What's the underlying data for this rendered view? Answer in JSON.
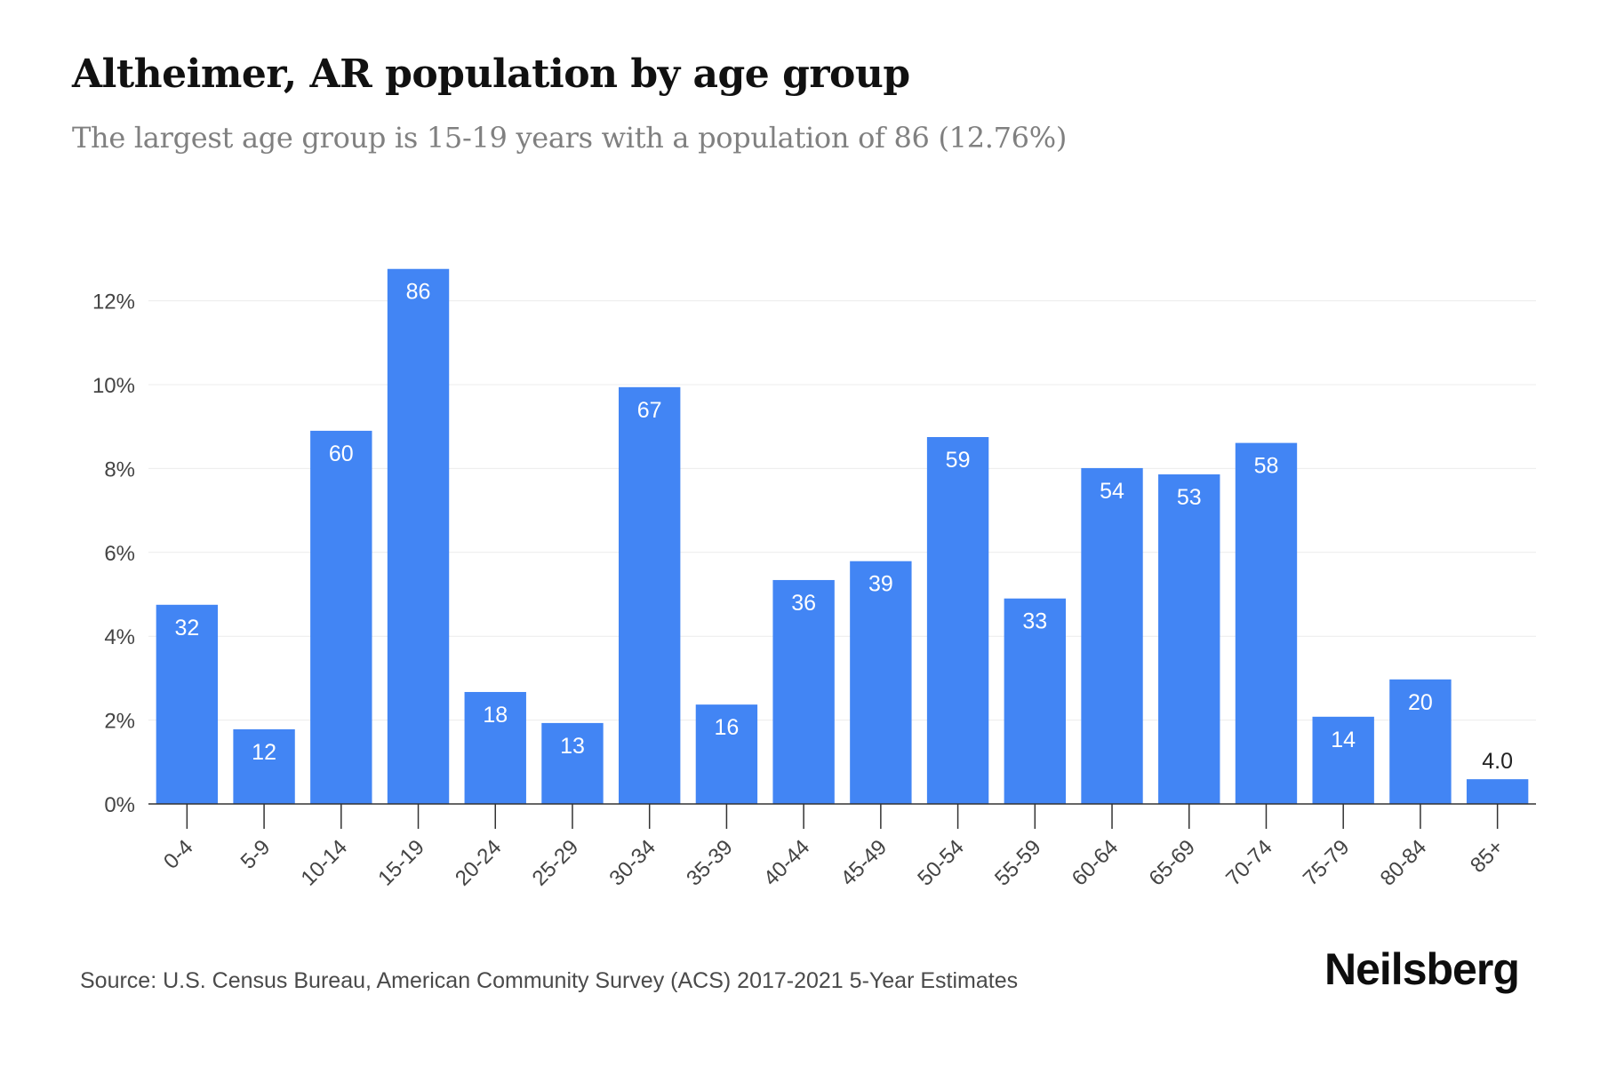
{
  "header": {
    "title": "Altheimer, AR population by age group",
    "subtitle": "The largest age group is 15-19 years with a population of 86 (12.76%)"
  },
  "footer": {
    "source": "Source: U.S. Census Bureau, American Community Survey (ACS) 2017-2021 5-Year Estimates",
    "brand": "Neilsberg"
  },
  "chart_data": {
    "type": "bar",
    "title": "Altheimer, AR population by age group",
    "subtitle": "The largest age group is 15-19 years with a population of 86 (12.76%)",
    "xlabel": "",
    "ylabel": "",
    "categories": [
      "0-4",
      "5-9",
      "10-14",
      "15-19",
      "20-24",
      "25-29",
      "30-34",
      "35-39",
      "40-44",
      "45-49",
      "50-54",
      "55-59",
      "60-64",
      "65-69",
      "70-74",
      "75-79",
      "80-84",
      "85+"
    ],
    "values": [
      4.75,
      1.78,
      8.9,
      12.76,
      2.67,
      1.93,
      9.94,
      2.37,
      5.34,
      5.79,
      8.75,
      4.9,
      8.01,
      7.86,
      8.61,
      2.08,
      2.97,
      0.59
    ],
    "labels": [
      "32",
      "12",
      "60",
      "86",
      "18",
      "13",
      "67",
      "16",
      "36",
      "39",
      "59",
      "33",
      "54",
      "53",
      "58",
      "14",
      "20",
      "4.0"
    ],
    "yticks": [
      0,
      2,
      4,
      6,
      8,
      10,
      12
    ],
    "ytick_labels": [
      "0%",
      "2%",
      "4%",
      "6%",
      "8%",
      "10%",
      "12%"
    ],
    "ylim": [
      0,
      12.76
    ],
    "grid": true,
    "bar_color": "#4285f4",
    "label_color_inside": "#ffffff",
    "label_color_outside": "#222222"
  }
}
